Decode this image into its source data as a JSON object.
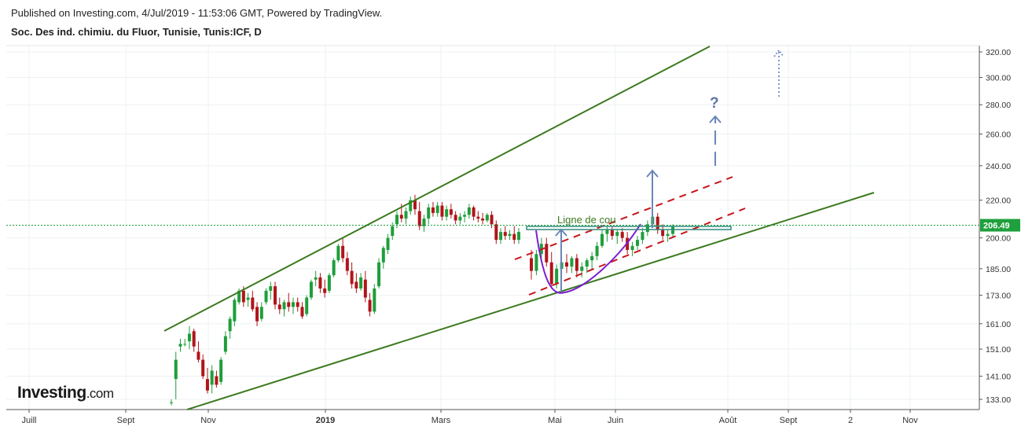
{
  "header": {
    "published": "Published on Investing.com, 4/Jul/2019 - 11:53:06 GMT, Powered by TradingView.",
    "instrument": "Soc. Des ind. chimiu. du Fluor, Tunisie, Tunis:ICF, D"
  },
  "logo": {
    "main": "Investing",
    "suffix": ".com"
  },
  "chart_data": {
    "type": "candlestick",
    "scale": "log",
    "grid": true,
    "ylim": [
      130,
      325
    ],
    "y_ticks": [
      "320.00",
      "300.00",
      "280.00",
      "260.00",
      "240.00",
      "220.00",
      "200.00",
      "185.00",
      "173.00",
      "161.00",
      "151.00",
      "141.00",
      "133.00"
    ],
    "x_ticks": [
      "Juill",
      "Sept",
      "Nov",
      "2019",
      "Mars",
      "Mai",
      "Juin",
      "Août",
      "Sept",
      "2",
      "Nov"
    ],
    "last_price": "206.49",
    "annotations": {
      "neckline_label": "Ligne de cou",
      "question_mark": "?"
    },
    "colors": {
      "up": "#1e9e3a",
      "down": "#b0141a",
      "channel": "#3c7a1e",
      "dashed_trend": "#c8141a",
      "cup": "#7b1fd1",
      "arrow": "#6a86b8",
      "neckline": "#2e8a7c",
      "price_line": "#1a9e3a"
    },
    "candles_approx": [
      [
        132,
        133,
        131,
        132
      ],
      [
        140,
        150,
        133,
        147
      ],
      [
        152,
        155,
        150,
        153
      ],
      [
        153,
        155,
        152,
        153
      ],
      [
        154,
        160,
        151,
        157
      ],
      [
        158,
        159,
        150,
        152
      ],
      [
        150,
        154,
        146,
        147
      ],
      [
        147,
        149,
        140,
        141
      ],
      [
        140,
        144,
        135,
        136
      ],
      [
        138,
        145,
        135,
        143
      ],
      [
        141,
        143,
        137,
        138
      ],
      [
        139,
        148,
        138,
        147
      ],
      [
        150,
        158,
        149,
        156
      ],
      [
        158,
        164,
        155,
        163
      ],
      [
        162,
        172,
        160,
        171
      ],
      [
        170,
        176,
        169,
        175
      ],
      [
        175,
        177,
        168,
        170
      ],
      [
        171,
        174,
        168,
        172
      ],
      [
        172,
        175,
        166,
        167
      ],
      [
        168,
        170,
        160,
        162
      ],
      [
        163,
        170,
        162,
        168
      ],
      [
        170,
        176,
        169,
        175
      ],
      [
        175,
        179,
        171,
        177
      ],
      [
        177,
        179,
        167,
        169
      ],
      [
        169,
        172,
        165,
        167
      ],
      [
        167,
        171,
        164,
        170
      ],
      [
        170,
        174,
        166,
        168
      ],
      [
        168,
        172,
        165,
        170
      ],
      [
        170,
        172,
        166,
        168
      ],
      [
        168,
        170,
        163,
        164
      ],
      [
        165,
        173,
        164,
        172
      ],
      [
        172,
        180,
        171,
        179
      ],
      [
        180,
        184,
        177,
        181
      ],
      [
        181,
        183,
        174,
        176
      ],
      [
        176,
        180,
        172,
        174
      ],
      [
        175,
        183,
        174,
        182
      ],
      [
        182,
        190,
        181,
        189
      ],
      [
        189,
        197,
        188,
        196
      ],
      [
        196,
        200,
        188,
        190
      ],
      [
        190,
        193,
        182,
        184
      ],
      [
        184,
        188,
        176,
        178
      ],
      [
        179,
        183,
        174,
        176
      ],
      [
        176,
        183,
        175,
        181
      ],
      [
        180,
        184,
        170,
        172
      ],
      [
        171,
        174,
        164,
        166
      ],
      [
        166,
        178,
        165,
        176
      ],
      [
        177,
        190,
        176,
        188
      ],
      [
        188,
        196,
        185,
        195
      ],
      [
        194,
        202,
        192,
        200
      ],
      [
        201,
        208,
        199,
        206
      ],
      [
        207,
        214,
        205,
        212
      ],
      [
        212,
        218,
        208,
        210
      ],
      [
        210,
        216,
        207,
        214
      ],
      [
        214,
        222,
        212,
        220
      ],
      [
        220,
        223,
        212,
        215
      ],
      [
        214,
        219,
        204,
        206
      ],
      [
        206,
        212,
        203,
        210
      ],
      [
        210,
        218,
        207,
        216
      ],
      [
        216,
        219,
        211,
        213
      ],
      [
        213,
        219,
        211,
        217
      ],
      [
        217,
        219,
        209,
        211
      ],
      [
        211,
        217,
        209,
        215
      ],
      [
        215,
        218,
        210,
        212
      ],
      [
        212,
        214,
        207,
        209
      ],
      [
        209,
        213,
        207,
        211
      ],
      [
        211,
        214,
        208,
        212
      ],
      [
        212,
        218,
        210,
        216
      ],
      [
        216,
        217,
        209,
        211
      ],
      [
        211,
        214,
        208,
        210
      ],
      [
        210,
        213,
        207,
        209
      ],
      [
        209,
        213,
        208,
        212
      ],
      [
        212,
        214,
        205,
        207
      ],
      [
        207,
        209,
        197,
        199
      ],
      [
        199,
        205,
        197,
        203
      ],
      [
        203,
        206,
        199,
        201
      ],
      [
        201,
        204,
        199,
        202
      ],
      [
        202,
        206,
        197,
        199
      ],
      [
        199,
        205,
        197,
        203
      ],
      [
        190,
        194,
        180,
        184
      ],
      [
        184,
        194,
        182,
        192
      ],
      [
        192,
        200,
        190,
        197
      ],
      [
        197,
        200,
        186,
        188
      ],
      [
        188,
        193,
        176,
        178
      ],
      [
        178,
        187,
        176,
        185
      ],
      [
        185,
        190,
        182,
        188
      ],
      [
        188,
        192,
        183,
        186
      ],
      [
        186,
        191,
        183,
        190
      ],
      [
        190,
        192,
        181,
        184
      ],
      [
        184,
        188,
        181,
        186
      ],
      [
        186,
        190,
        183,
        189
      ],
      [
        189,
        193,
        185,
        191
      ],
      [
        191,
        198,
        189,
        196
      ],
      [
        196,
        204,
        195,
        202
      ],
      [
        202,
        206,
        198,
        204
      ],
      [
        204,
        206,
        199,
        201
      ],
      [
        201,
        204,
        197,
        203
      ],
      [
        203,
        205,
        198,
        200
      ],
      [
        200,
        203,
        192,
        194
      ],
      [
        194,
        198,
        191,
        196
      ],
      [
        196,
        201,
        194,
        199
      ],
      [
        199,
        205,
        197,
        203
      ],
      [
        203,
        209,
        201,
        207
      ],
      [
        207,
        214,
        205,
        211
      ],
      [
        211,
        213,
        202,
        204
      ],
      [
        204,
        207,
        199,
        201
      ],
      [
        201,
        204,
        198,
        202
      ],
      [
        202,
        207,
        200,
        206
      ]
    ]
  }
}
